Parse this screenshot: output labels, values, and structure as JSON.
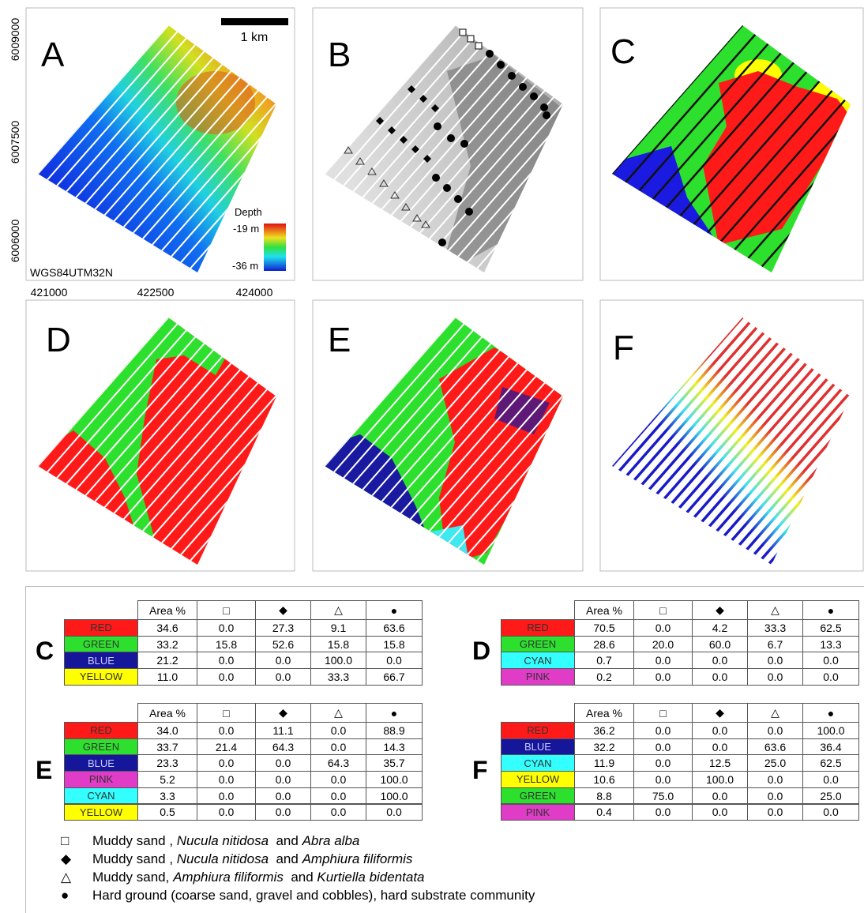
{
  "panel_labels": [
    "A",
    "B",
    "C",
    "D",
    "E",
    "F"
  ],
  "map_a": {
    "scale_bar": "1 km",
    "legend_title": "Depth",
    "max_label": "-19 m",
    "min_label": "-36 m",
    "crs": "WGS84UTM32N",
    "y_labels": [
      "6009000",
      "6007500",
      "6006000"
    ],
    "x_labels": [
      "421000",
      "422500",
      "424000"
    ]
  },
  "tables": [
    {
      "label": "C",
      "header": [
        "Area %",
        "□",
        "◆",
        "△",
        "●"
      ],
      "rows": [
        {
          "name": "RED",
          "color": "#ff1a1a",
          "cells": [
            "34.6",
            "0.0",
            "27.3",
            "9.1",
            "63.6"
          ]
        },
        {
          "name": "GREEN",
          "color": "#2ee02e",
          "cells": [
            "33.2",
            "15.8",
            "52.6",
            "15.8",
            "15.8"
          ]
        },
        {
          "name": "BLUE",
          "color": "#16169a",
          "cells": [
            "21.2",
            "0.0",
            "0.0",
            "100.0",
            "0.0"
          ]
        },
        {
          "name": "YELLOW",
          "color": "#ffff00",
          "cells": [
            "11.0",
            "0.0",
            "0.0",
            "33.3",
            "66.7"
          ]
        }
      ]
    },
    {
      "label": "D",
      "header": [
        "Area %",
        "□",
        "◆",
        "△",
        "●"
      ],
      "rows": [
        {
          "name": "RED",
          "color": "#ff1a1a",
          "cells": [
            "70.5",
            "0.0",
            "4.2",
            "33.3",
            "62.5"
          ]
        },
        {
          "name": "GREEN",
          "color": "#2ee02e",
          "cells": [
            "28.6",
            "20.0",
            "60.0",
            "6.7",
            "13.3"
          ]
        },
        {
          "name": "CYAN",
          "color": "#33ffff",
          "cells": [
            "0.7",
            "0.0",
            "0.0",
            "0.0",
            "0.0"
          ]
        },
        {
          "name": "PINK",
          "color": "#e03cc8",
          "cells": [
            "0.2",
            "0.0",
            "0.0",
            "0.0",
            "0.0"
          ]
        }
      ]
    },
    {
      "label": "E",
      "header": [
        "Area %",
        "□",
        "◆",
        "△",
        "●"
      ],
      "rows": [
        {
          "name": "RED",
          "color": "#ff1a1a",
          "cells": [
            "34.0",
            "0.0",
            "11.1",
            "0.0",
            "88.9"
          ]
        },
        {
          "name": "GREEN",
          "color": "#2ee02e",
          "cells": [
            "33.7",
            "21.4",
            "64.3",
            "0.0",
            "14.3"
          ]
        },
        {
          "name": "BLUE",
          "color": "#16169a",
          "cells": [
            "23.3",
            "0.0",
            "0.0",
            "64.3",
            "35.7"
          ]
        },
        {
          "name": "PINK",
          "color": "#e03cc8",
          "cells": [
            "5.2",
            "0.0",
            "0.0",
            "0.0",
            "100.0"
          ]
        },
        {
          "name": "CYAN",
          "color": "#33ffff",
          "cells": [
            "3.3",
            "0.0",
            "0.0",
            "0.0",
            "100.0"
          ]
        },
        {
          "name": "YELLOW",
          "color": "#ffff00",
          "cells": [
            "0.5",
            "0.0",
            "0.0",
            "0.0",
            "0.0"
          ]
        }
      ]
    },
    {
      "label": "F",
      "header": [
        "Area %",
        "□",
        "◆",
        "△",
        "●"
      ],
      "rows": [
        {
          "name": "RED",
          "color": "#ff1a1a",
          "cells": [
            "36.2",
            "0.0",
            "0.0",
            "0.0",
            "100.0"
          ]
        },
        {
          "name": "BLUE",
          "color": "#16169a",
          "cells": [
            "32.2",
            "0.0",
            "0.0",
            "63.6",
            "36.4"
          ]
        },
        {
          "name": "CYAN",
          "color": "#33ffff",
          "cells": [
            "11.9",
            "0.0",
            "12.5",
            "25.0",
            "62.5"
          ]
        },
        {
          "name": "YELLOW",
          "color": "#ffff00",
          "cells": [
            "10.6",
            "0.0",
            "100.0",
            "0.0",
            "0.0"
          ]
        },
        {
          "name": "GREEN",
          "color": "#2ee02e",
          "cells": [
            "8.8",
            "75.0",
            "0.0",
            "0.0",
            "25.0"
          ]
        },
        {
          "name": "PINK",
          "color": "#e03cc8",
          "cells": [
            "0.4",
            "0.0",
            "0.0",
            "0.0",
            "0.0"
          ]
        }
      ]
    }
  ],
  "legend": [
    {
      "symbol": "□",
      "parts": [
        "Muddy sand , ",
        "Nucula nitidosa",
        "  and ",
        "Abra alba"
      ]
    },
    {
      "symbol": "◆",
      "parts": [
        "Muddy sand , ",
        "Nucula nitidosa",
        "  and ",
        "Amphiura filiformis"
      ]
    },
    {
      "symbol": "△",
      "parts": [
        "Muddy sand, ",
        "Amphiura filiformis",
        "  and ",
        "Kurtiella bidentata"
      ]
    },
    {
      "symbol": "●",
      "parts": [
        "Hard ground (coarse sand, gravel and cobbles), hard substrate community"
      ]
    }
  ]
}
